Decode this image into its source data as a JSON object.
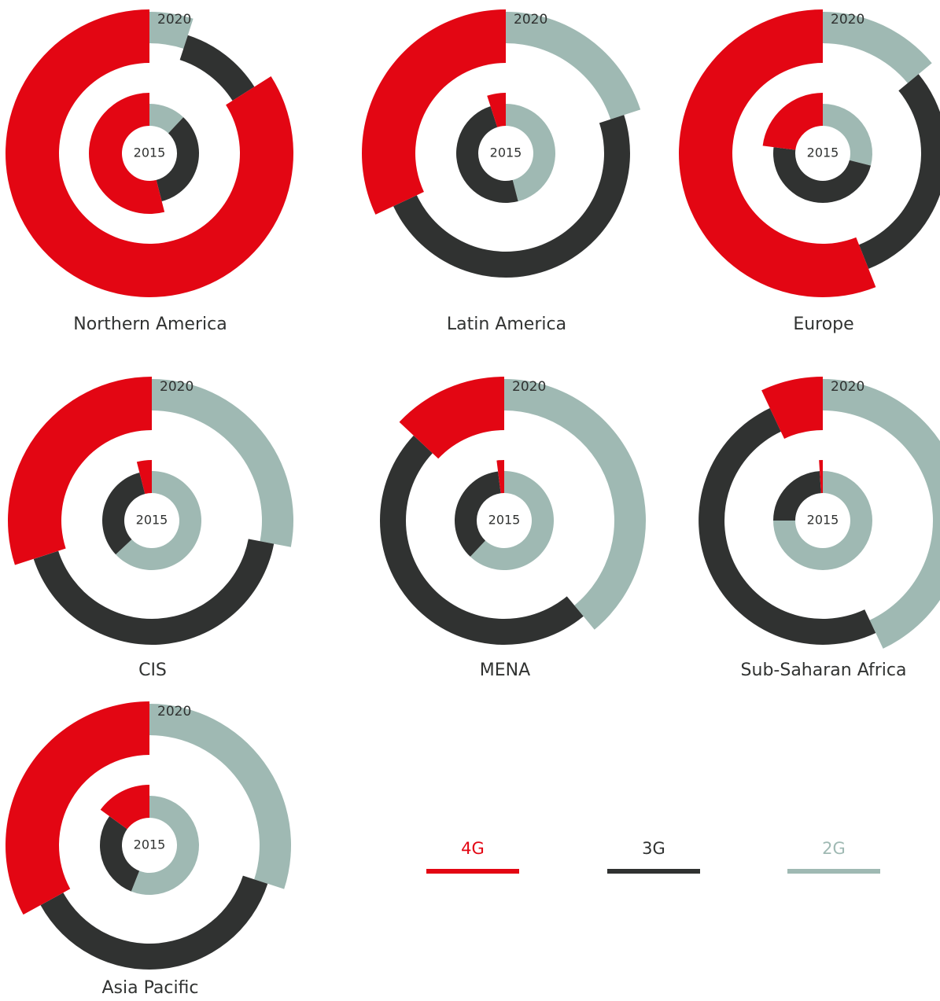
{
  "chart_data": {
    "type": "radial-donut",
    "years": [
      "2020",
      "2015"
    ],
    "series": [
      {
        "name": "4G",
        "color": "#e30613"
      },
      {
        "name": "3G",
        "color": "#303231"
      },
      {
        "name": "2G",
        "color": "#9fb9b3"
      }
    ],
    "regions": [
      {
        "name": "Northern America",
        "values": [
          [
            84,
            11,
            5
          ],
          [
            54,
            34,
            12
          ]
        ]
      },
      {
        "name": "Latin America",
        "values": [
          [
            32,
            48,
            20
          ],
          [
            5,
            49,
            46
          ]
        ]
      },
      {
        "name": "Europe",
        "values": [
          [
            56,
            30,
            14
          ],
          [
            23,
            48,
            29
          ]
        ]
      },
      {
        "name": "CIS",
        "values": [
          [
            30,
            42,
            28
          ],
          [
            4,
            33,
            63
          ]
        ]
      },
      {
        "name": "MENA",
        "values": [
          [
            13,
            48,
            39
          ],
          [
            2,
            36,
            62
          ]
        ]
      },
      {
        "name": "Sub-Saharan Africa",
        "values": [
          [
            7,
            50,
            43
          ],
          [
            1,
            24,
            75
          ]
        ]
      },
      {
        "name": "Asia Pacific",
        "values": [
          [
            33,
            37,
            30
          ],
          [
            15,
            29,
            56
          ]
        ]
      }
    ]
  }
}
